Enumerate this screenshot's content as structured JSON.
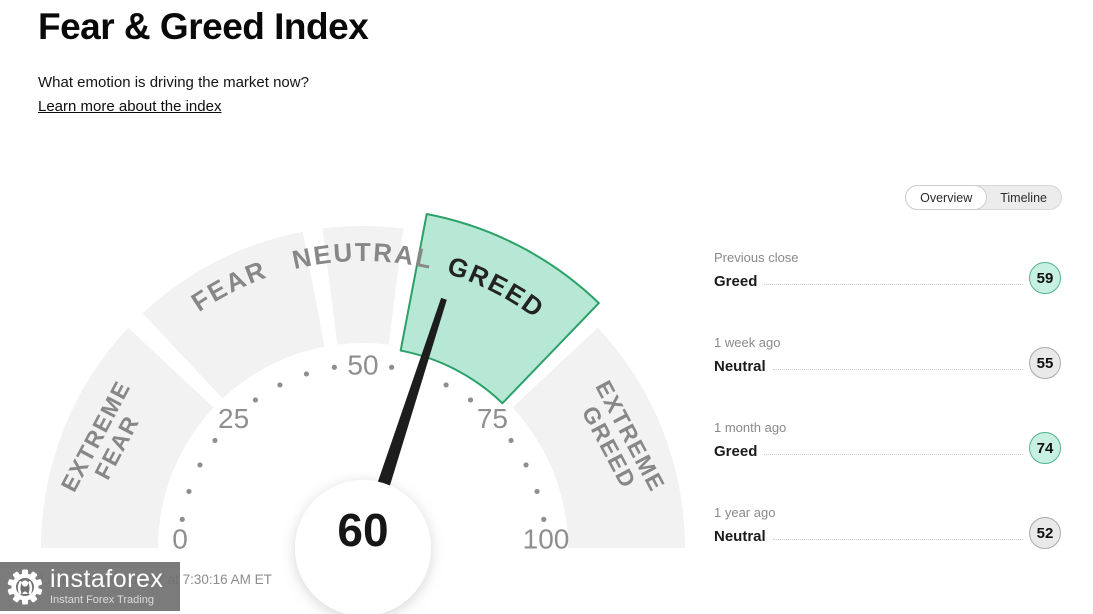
{
  "header": {
    "title": "Fear & Greed Index",
    "subtitle": "What emotion is driving the market now?",
    "learn_more": "Learn more about the index"
  },
  "tabs": [
    {
      "label": "Overview",
      "selected": true
    },
    {
      "label": "Timeline",
      "selected": false
    }
  ],
  "chart_data": {
    "type": "gauge",
    "title": "Fear & Greed Index",
    "value": 60,
    "min": 0,
    "max": 100,
    "tick_step": 5,
    "number_ticks": [
      0,
      25,
      50,
      75,
      100
    ],
    "segments": [
      {
        "label": "EXTREME FEAR",
        "from": 0,
        "to": 25,
        "state": "inactive",
        "layout": "two-line"
      },
      {
        "label": "FEAR",
        "from": 25,
        "to": 45,
        "state": "inactive",
        "layout": "arc"
      },
      {
        "label": "NEUTRAL",
        "from": 45,
        "to": 55,
        "state": "inactive",
        "layout": "arc"
      },
      {
        "label": "GREED",
        "from": 55,
        "to": 75,
        "state": "active",
        "layout": "arc"
      },
      {
        "label": "EXTREME GREED",
        "from": 75,
        "to": 100,
        "state": "inactive",
        "layout": "two-line"
      }
    ],
    "colors": {
      "segment": "#f2f2f2",
      "segment_label": "#878787",
      "active_fill": "#b7e8d6",
      "active_stroke": "#2ba169",
      "active_label": "#232323",
      "ticks": "#8f8f8f",
      "needle": "#1d1d1d",
      "value_text": "#161616"
    }
  },
  "history": [
    {
      "period": "Previous close",
      "label": "Greed",
      "value": "59",
      "tone": "greed"
    },
    {
      "period": "1 week ago",
      "label": "Neutral",
      "value": "55",
      "tone": "neutral"
    },
    {
      "period": "1 month ago",
      "label": "Greed",
      "value": "74",
      "tone": "greed"
    },
    {
      "period": "1 year ago",
      "label": "Neutral",
      "value": "52",
      "tone": "neutral"
    }
  ],
  "footer": {
    "last_updated": "Last updated Aug 27 at 7:30:16 AM ET"
  },
  "watermark": {
    "name": "instaforex",
    "tagline": "Instant Forex Trading"
  }
}
